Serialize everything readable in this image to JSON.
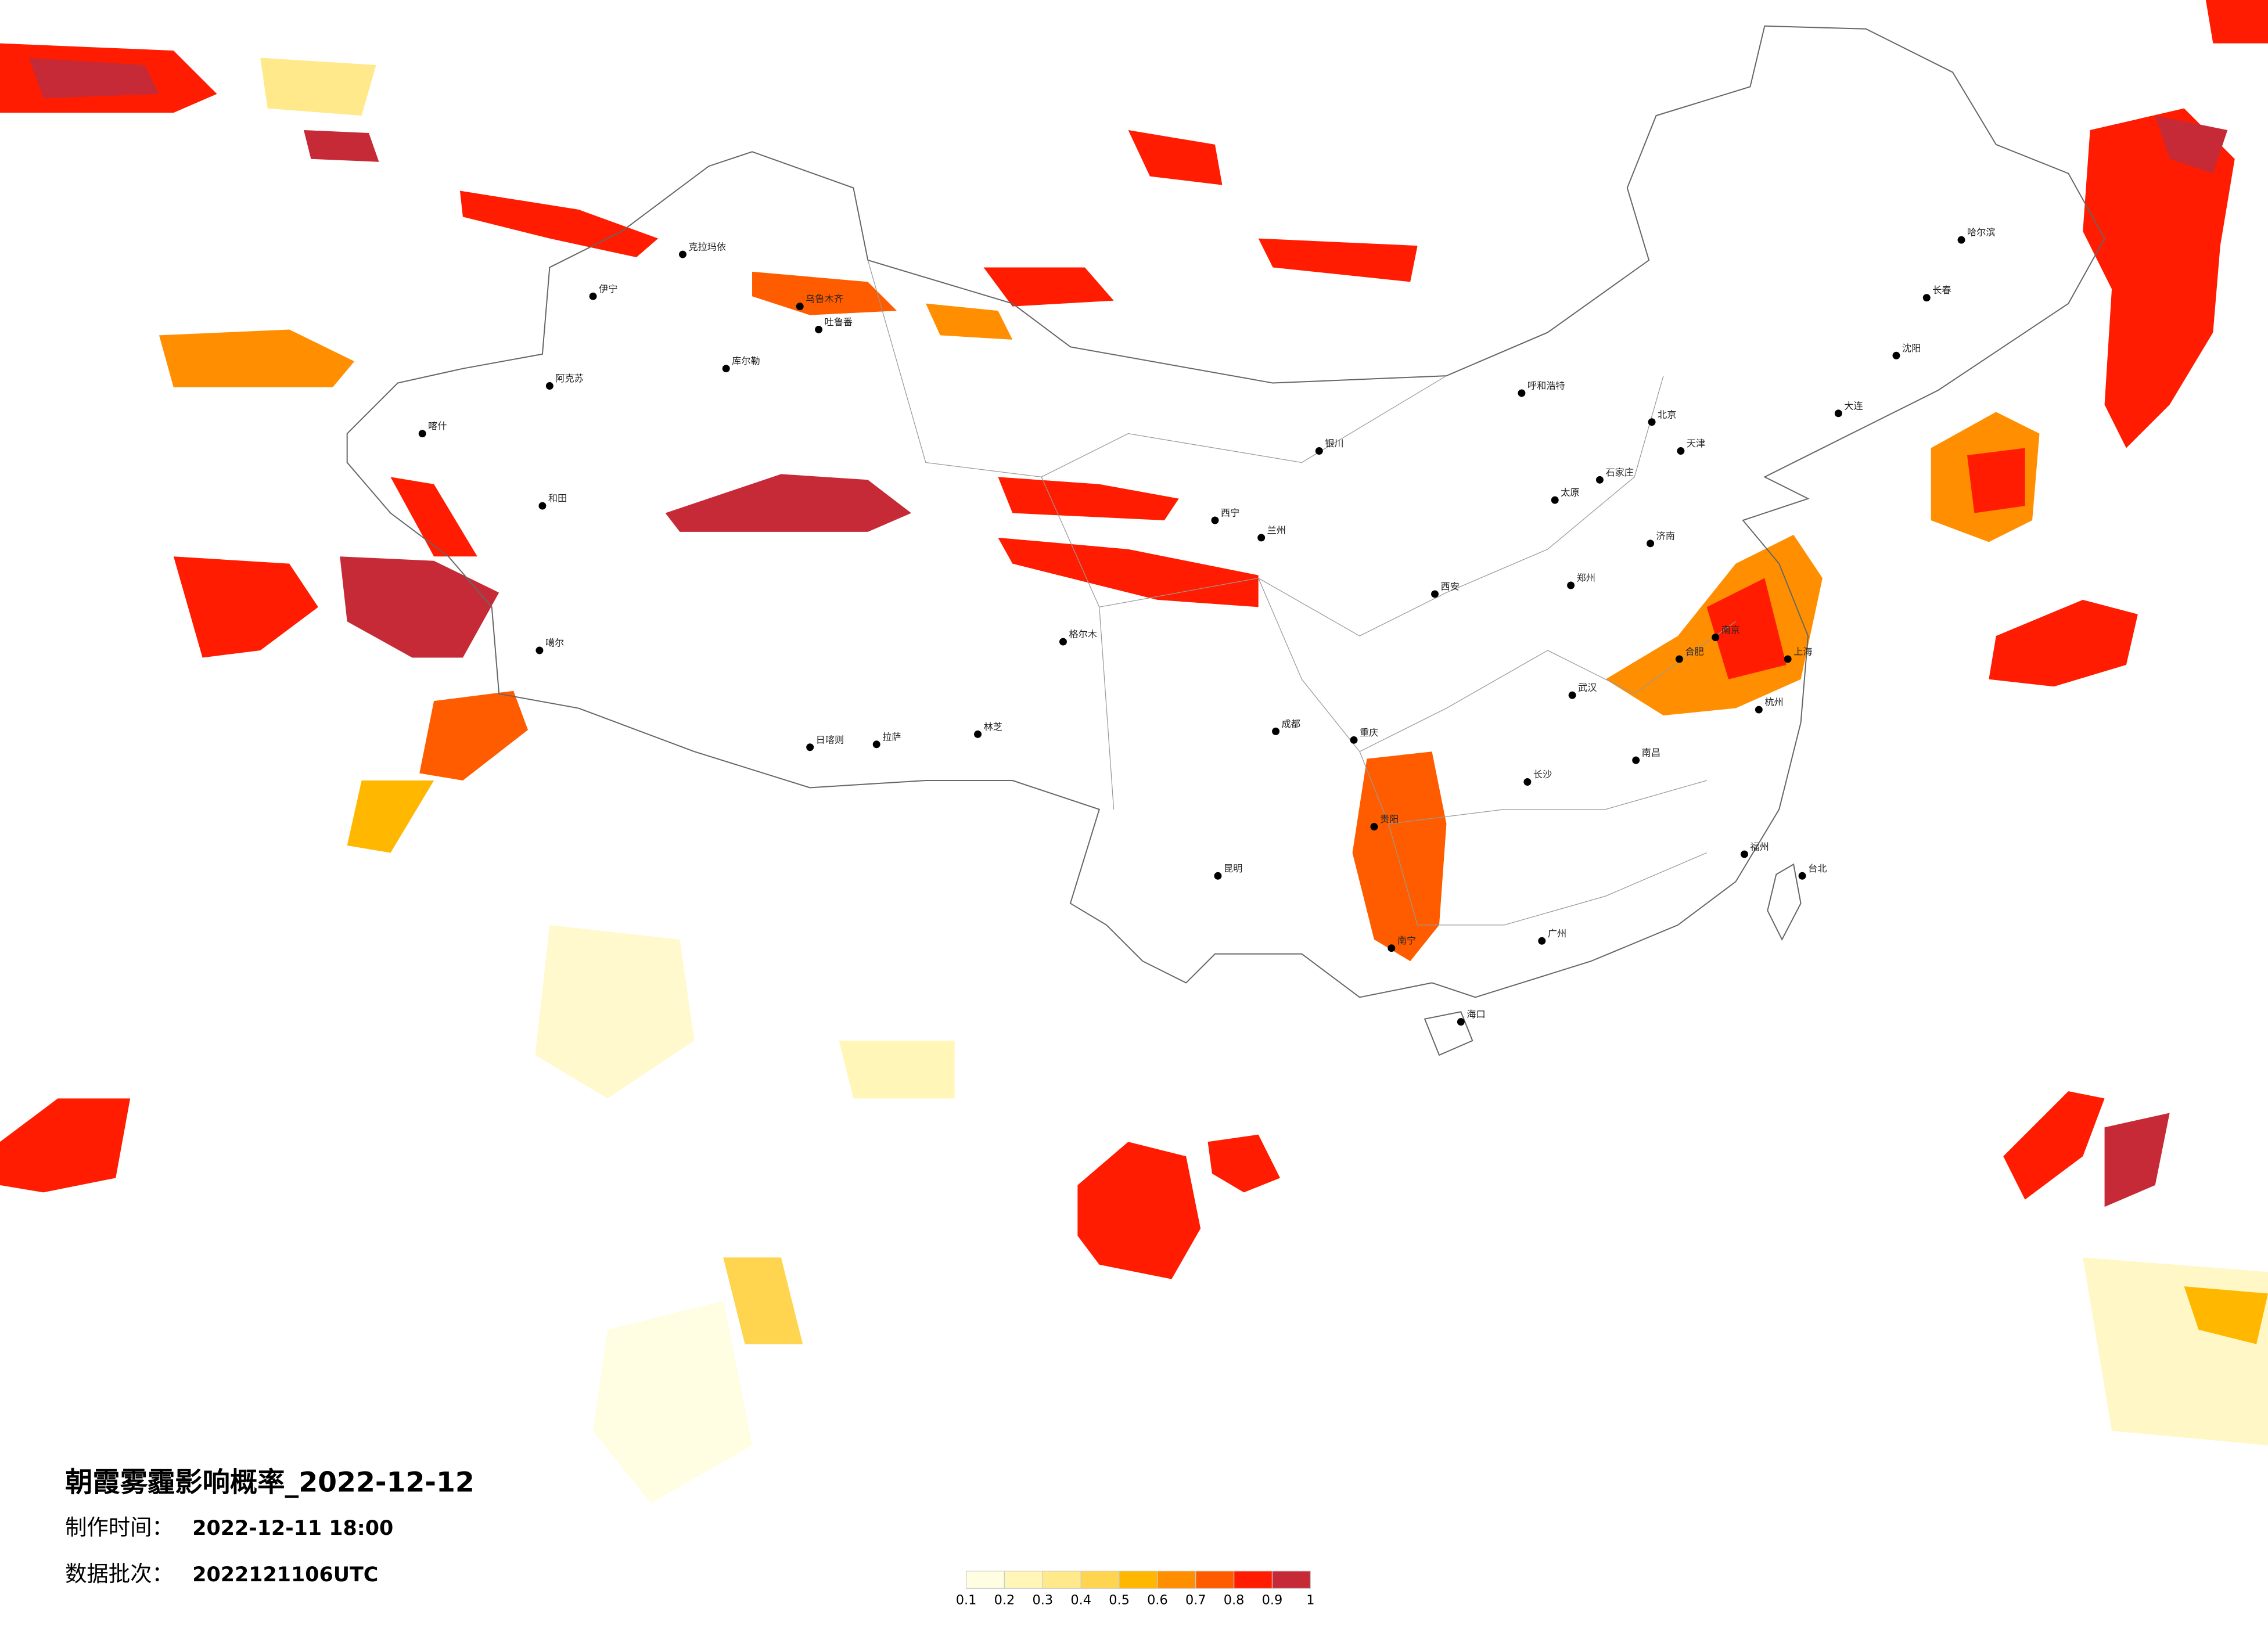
{
  "title": "朝霞雾霾影响概率_2022-12-12",
  "made_time": {
    "label": "制作时间：",
    "value": "2022-12-11 18:00"
  },
  "batch": {
    "label": "数据批次：",
    "value": "2022121106UTC"
  },
  "legend": {
    "colors": [
      "#fffde2",
      "#fff6b8",
      "#ffe98a",
      "#ffd54f",
      "#ffb700",
      "#ff8f00",
      "#ff5c00",
      "#ff1c00",
      "#c62a36"
    ],
    "ticks": [
      0.1,
      0.2,
      0.3,
      0.4,
      0.5,
      0.6,
      0.7,
      0.8,
      0.9,
      1
    ]
  },
  "cities": [
    "克拉玛依",
    "伊宁",
    "乌鲁木齐",
    "吐鲁番",
    "库尔勒",
    "阿克苏",
    "喀什",
    "和田",
    "噶尔",
    "日喀则",
    "拉萨",
    "林芝",
    "格尔木",
    "西宁",
    "兰州",
    "银川",
    "呼和浩特",
    "北京",
    "天津",
    "石家庄",
    "太原",
    "郑州",
    "西安",
    "成都",
    "重庆",
    "贵阳",
    "昆明",
    "南宁",
    "广州",
    "长沙",
    "武汉",
    "南京",
    "上海",
    "杭州",
    "福州",
    "台北",
    "海口",
    "哈尔滨",
    "长春",
    "沈阳",
    "济南",
    "合肥",
    "南昌",
    "大连"
  ]
}
